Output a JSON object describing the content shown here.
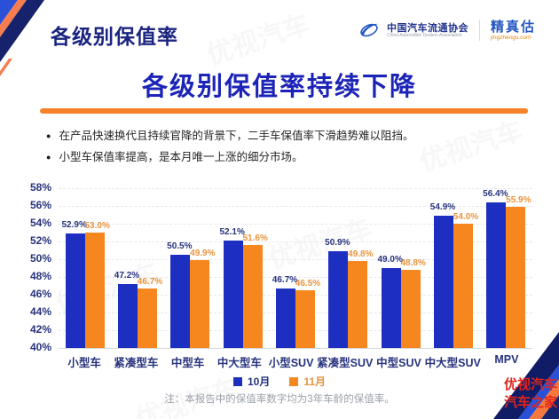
{
  "header": {
    "title": "各级别保值率",
    "logo": {
      "org_cn": "中国汽车流通协会",
      "org_en": "China Automobile Dealers Association",
      "brand": "精真估",
      "brand_url": "jingzhengu.com"
    }
  },
  "main": {
    "title": "各级别保值率持续下降",
    "bullets": [
      "在产品快速换代且持续官降的背景下，二手车保值率下滑趋势难以阻挡。",
      "小型车保值率提高，是本月唯一上涨的细分市场。"
    ],
    "note": "注：本报告中的保值率数字均为3年车龄的保值率。"
  },
  "chart_data": {
    "type": "bar",
    "title": "各级别保值率持续下降",
    "categories": [
      "小型车",
      "紧凑型车",
      "中型车",
      "中大型车",
      "小型SUV",
      "紧凑型SUV",
      "中型SUV",
      "中大型SUV",
      "MPV"
    ],
    "series": [
      {
        "name": "10月",
        "color": "#1d2fc0",
        "values": [
          52.9,
          47.2,
          50.5,
          52.1,
          46.7,
          50.9,
          49.0,
          54.9,
          56.4
        ]
      },
      {
        "name": "11月",
        "color": "#f5871e",
        "values": [
          53.0,
          46.7,
          49.9,
          51.6,
          46.5,
          49.8,
          48.8,
          54.0,
          55.9
        ]
      }
    ],
    "ylabel": "",
    "xlabel": "",
    "ylim": [
      40,
      58
    ],
    "ytick_step": 2,
    "ytick_suffix": "%",
    "grid": true,
    "legend_position": "bottom",
    "value_label_suffix": "%"
  },
  "watermark": {
    "tile_text": "优视汽车",
    "line1": "优视汽车",
    "line2": "汽车之家"
  },
  "colors": {
    "header_navy": "#1b2580",
    "title_blue": "#1c24b8",
    "accent_orange": "#f5822b",
    "bar_blue": "#1d2fc0",
    "bar_orange": "#f5871e",
    "label_navy": "#27337d",
    "label_orange": "#e9943f",
    "org_navy": "#21338c",
    "brand_blue": "#2456c4",
    "brand_url_orange": "#f08300",
    "note_gray": "#9ba1a9",
    "watermark_red": "#e0251c"
  }
}
